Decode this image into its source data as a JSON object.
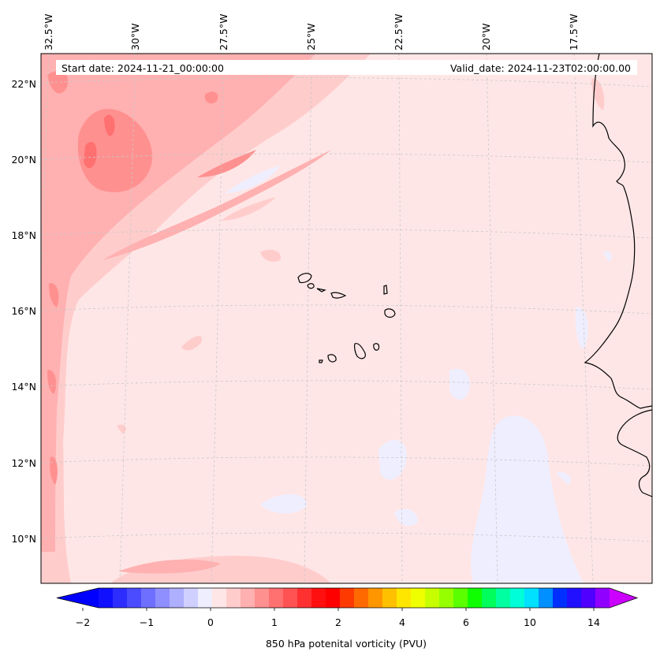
{
  "header": {
    "start_date": "Start date: 2024-11-21_00:00:00",
    "valid_date": "Valid_date: 2024-11-23T02:00:00.00"
  },
  "map": {
    "longitude_labels": [
      "32.5°W",
      "30°W",
      "27.5°W",
      "25°W",
      "22.5°W",
      "20°W",
      "17.5°W"
    ],
    "latitude_labels": [
      "22°N",
      "20°N",
      "18°N",
      "16°N",
      "14°N",
      "12°N",
      "10°N"
    ],
    "gridlines": "dashed",
    "coastlines": true
  },
  "colorbar": {
    "label": "850 hPa potenital vorticity (PVU)",
    "tick_labels": [
      "−2",
      "−1",
      "0",
      "1",
      "2",
      "4",
      "6",
      "10",
      "14"
    ],
    "extend": "both",
    "colors": [
      "#1010ff",
      "#2d2dff",
      "#4b4bff",
      "#6f6fff",
      "#8f8fff",
      "#afafff",
      "#d0d0ff",
      "#eeeeff",
      "#ffe6e6",
      "#ffcccc",
      "#ffb0b0",
      "#ff9090",
      "#ff7070",
      "#ff5252",
      "#ff3030",
      "#ff1010",
      "#ff0000",
      "#ff3a00",
      "#ff6a00",
      "#ff9600",
      "#ffc000",
      "#ffe600",
      "#f0ff00",
      "#c8ff00",
      "#96ff00",
      "#5aff00",
      "#10ff00",
      "#00ff5a",
      "#00ffa0",
      "#00ffd8",
      "#00e0ff",
      "#0090ff",
      "#0030ff",
      "#2010ff",
      "#5000ff",
      "#9000ff"
    ],
    "under_color": "#0000ff",
    "over_color": "#cc00ff"
  }
}
